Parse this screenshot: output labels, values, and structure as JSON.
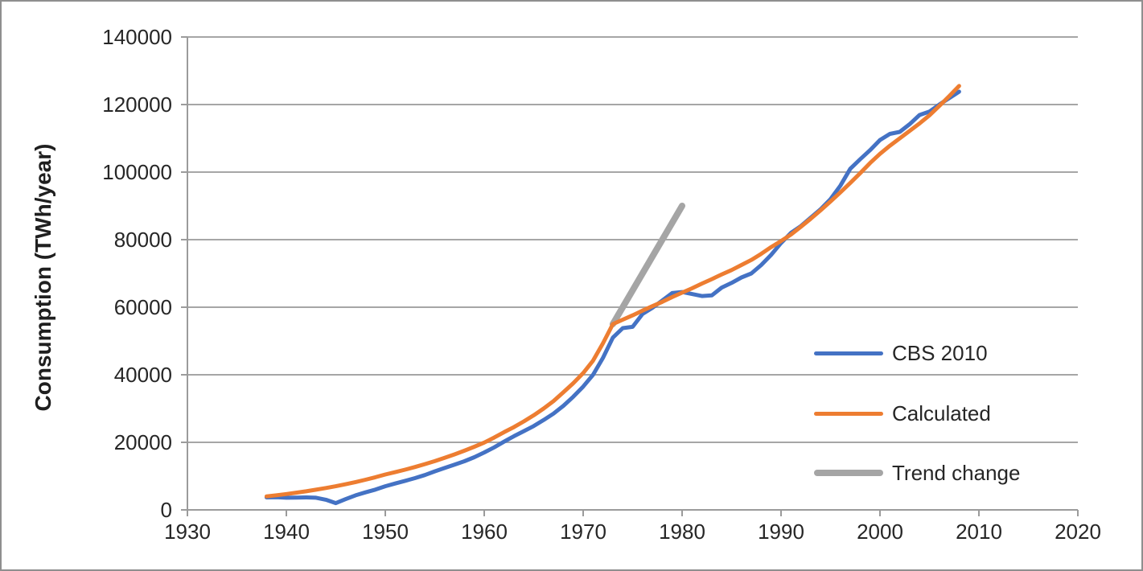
{
  "chart_data": {
    "type": "line",
    "title": "",
    "xlabel": "",
    "ylabel": "Consumption (TWh/year)",
    "xlim": [
      1930,
      2020
    ],
    "ylim": [
      0,
      140000
    ],
    "x_ticks": [
      1930,
      1940,
      1950,
      1960,
      1970,
      1980,
      1990,
      2000,
      2010,
      2020
    ],
    "y_ticks": [
      0,
      20000,
      40000,
      60000,
      80000,
      100000,
      120000,
      140000
    ],
    "grid": "horizontal",
    "legend_position": "middle-right",
    "years": [
      1938,
      1939,
      1940,
      1941,
      1942,
      1943,
      1944,
      1945,
      1946,
      1947,
      1948,
      1949,
      1950,
      1951,
      1952,
      1953,
      1954,
      1955,
      1956,
      1957,
      1958,
      1959,
      1960,
      1961,
      1962,
      1963,
      1964,
      1965,
      1966,
      1967,
      1968,
      1969,
      1970,
      1971,
      1972,
      1973,
      1974,
      1975,
      1976,
      1977,
      1978,
      1979,
      1980,
      1981,
      1982,
      1983,
      1984,
      1985,
      1986,
      1987,
      1988,
      1989,
      1990,
      1991,
      1992,
      1993,
      1994,
      1995,
      1996,
      1997,
      1998,
      1999,
      2000,
      2001,
      2002,
      2003,
      2004,
      2005,
      2006,
      2007,
      2008
    ],
    "series": [
      {
        "name": "CBS 2010",
        "color": "#4472C4",
        "stroke_width": 5,
        "values": [
          3700,
          3750,
          3600,
          3650,
          3700,
          3600,
          3000,
          2000,
          3200,
          4300,
          5200,
          6000,
          7000,
          7800,
          8600,
          9400,
          10300,
          11400,
          12400,
          13400,
          14400,
          15600,
          17000,
          18500,
          20200,
          21800,
          23300,
          24800,
          26600,
          28500,
          30800,
          33500,
          36500,
          40000,
          45000,
          51000,
          53800,
          54200,
          58000,
          59800,
          62000,
          64200,
          64500,
          63900,
          63300,
          63500,
          65800,
          67200,
          68800,
          70000,
          72500,
          75500,
          79000,
          82000,
          84000,
          86500,
          89000,
          92000,
          96000,
          101000,
          103800,
          106500,
          109500,
          111300,
          111900,
          114200,
          116900,
          117900,
          120000,
          121900,
          123800
        ]
      },
      {
        "name": "Calculated",
        "color": "#ED7D31",
        "stroke_width": 5,
        "values": [
          4000,
          4330,
          4700,
          5090,
          5510,
          5970,
          6470,
          7010,
          7600,
          8230,
          8920,
          9660,
          10470,
          11170,
          11910,
          12700,
          13540,
          14440,
          15400,
          16430,
          17520,
          18680,
          19930,
          21400,
          23000,
          24500,
          26200,
          28000,
          30000,
          32200,
          34800,
          37500,
          40500,
          44200,
          49300,
          55000,
          56300,
          57600,
          59000,
          60300,
          61600,
          63000,
          64300,
          65600,
          67000,
          68300,
          69700,
          71000,
          72500,
          74000,
          75800,
          77800,
          79600,
          81500,
          83800,
          86200,
          88700,
          91300,
          94000,
          96800,
          99700,
          102700,
          105400,
          107800,
          110000,
          112200,
          114400,
          116800,
          119600,
          122500,
          125500
        ]
      },
      {
        "name": "Trend change",
        "color": "#A5A5A5",
        "stroke_width": 8,
        "points": [
          [
            1973,
            55000
          ],
          [
            1980,
            90000
          ]
        ]
      }
    ]
  },
  "legend": {
    "items": [
      {
        "label": "CBS 2010"
      },
      {
        "label": "Calculated"
      },
      {
        "label": "Trend change"
      }
    ]
  },
  "style_colors": {
    "gridline": "#a6a6a6",
    "axis_line": "#9b9b9b",
    "tick_text": "#262626",
    "frame_border": "#8f8f8f",
    "background": "#ffffff"
  }
}
